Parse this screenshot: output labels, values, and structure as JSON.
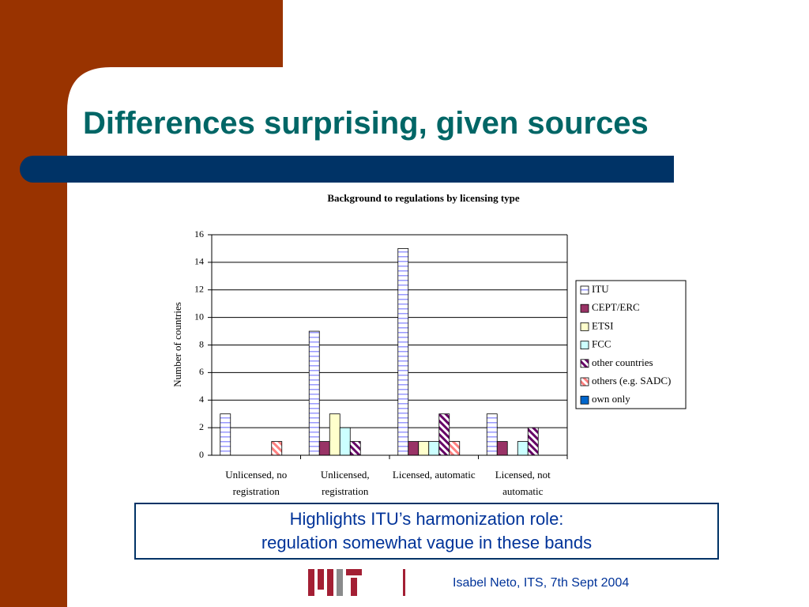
{
  "slide": {
    "title": "Differences surprising, given sources",
    "callout": [
      "Highlights ITU’s harmonization role:",
      "regulation somewhat vague in these bands"
    ],
    "footer": "Isabel Neto, ITS, 7th Sept 2004"
  },
  "chart_data": {
    "type": "bar",
    "title": "Background to regulations by licensing type",
    "y_label": "Number of countries",
    "categories": [
      "Unlicensed, no registration",
      "Unlicensed, registration",
      "Licensed, automatic",
      "Licensed, not automatic"
    ],
    "series": [
      {
        "name": "ITU",
        "color": "#9999ff",
        "pattern": "horizontal",
        "values": [
          3,
          9,
          15,
          3
        ]
      },
      {
        "name": "CEPT/ERC",
        "color": "#993366",
        "values": [
          0,
          1,
          1,
          1
        ]
      },
      {
        "name": "ETSI",
        "color": "#ffffcc",
        "values": [
          0,
          3,
          1,
          0
        ]
      },
      {
        "name": "FCC",
        "color": "#ccffff",
        "values": [
          0,
          2,
          1,
          1
        ]
      },
      {
        "name": "other countries",
        "color": "#660066",
        "pattern": "diagonal",
        "values": [
          0,
          1,
          3,
          2
        ]
      },
      {
        "name": "others (e.g. SADC)",
        "color": "#ff8080",
        "pattern": "diagonal",
        "values": [
          1,
          0,
          1,
          0
        ]
      },
      {
        "name": "own only",
        "color": "#0066cc",
        "values": [
          0,
          0,
          0,
          0
        ]
      }
    ],
    "ylim": [
      0,
      16
    ],
    "yticks": [
      0,
      2,
      4,
      6,
      8,
      10,
      12,
      14,
      16
    ],
    "grid": true,
    "legend": "right"
  }
}
